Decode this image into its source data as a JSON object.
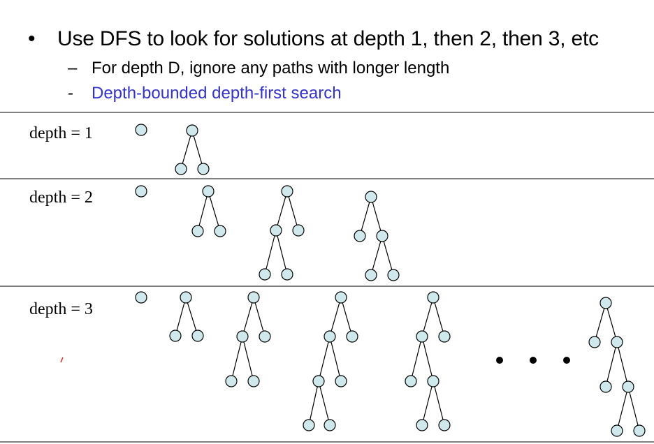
{
  "bullets": {
    "main": {
      "marker": "•",
      "text": "Use DFS to look for solutions at depth 1, then 2, then 3, etc"
    },
    "sub1": {
      "marker": "–",
      "text": "For depth D, ignore any paths with longer length"
    },
    "sub2": {
      "marker": "-",
      "text": "Depth-bounded depth-first search"
    }
  },
  "depth_labels": [
    "depth = 1",
    "depth = 2",
    "depth = 3"
  ],
  "colors": {
    "node_fill": "#cfe8ec",
    "highlight_text": "#3333cc",
    "tick_mark": "#e02020"
  }
}
